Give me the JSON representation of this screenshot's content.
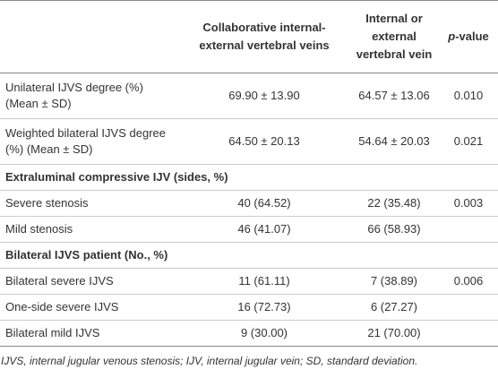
{
  "table": {
    "header": {
      "col1": "Collaborative internal-external vertebral veins",
      "col2": "Internal or external vertebral vein",
      "pvalue": [
        "p",
        "-value"
      ]
    },
    "rows": [
      [
        "Unilateral IJVS degree (%) (Mean ± SD)",
        "69.90 ± 13.90",
        "64.57 ± 13.06",
        "0.010"
      ],
      [
        "Weighted bilateral IJVS degree (%) (Mean ± SD)",
        "64.50 ± 20.13",
        "54.64 ± 20.03",
        "0.021"
      ],
      [
        "Extraluminal compressive IJV (sides, %)"
      ],
      [
        "Severe stenosis",
        "40 (64.52)",
        "22 (35.48)",
        "0.003"
      ],
      [
        "Mild stenosis",
        "46 (41.07)",
        "66 (58.93)"
      ],
      [
        "Bilateral IJVS patient (No., %)"
      ],
      [
        "Bilateral severe IJVS",
        "11 (61.11)",
        "7 (38.89)",
        "0.006"
      ],
      [
        "One-side severe IJVS",
        "16 (72.73)",
        "6 (27.27)"
      ],
      [
        "Bilateral mild IJVS",
        "9 (30.00)",
        "21 (70.00)"
      ]
    ],
    "footnote": "IJVS, internal jugular venous stenosis; IJV, internal jugular vein; SD, standard deviation."
  }
}
